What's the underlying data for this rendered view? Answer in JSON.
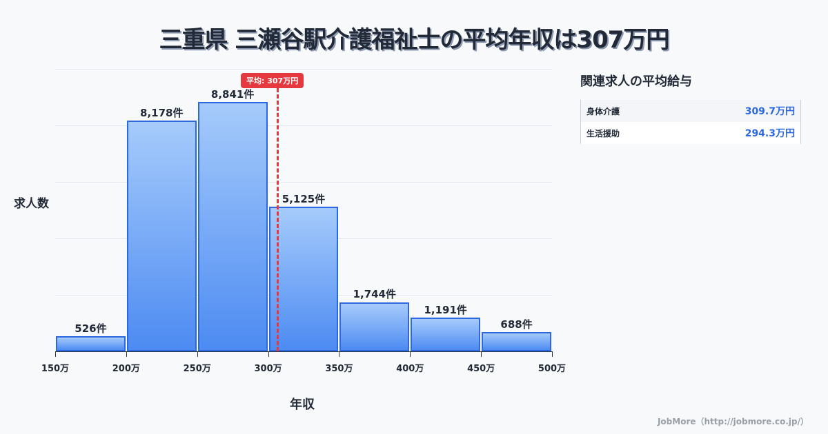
{
  "title": "三重県 三瀬谷駅介護福祉士の平均年収は307万円",
  "chart_data": {
    "type": "bar",
    "title": "三重県 三瀬谷駅介護福祉士の平均年収は307万円",
    "xlabel": "年収",
    "ylabel": "求人数",
    "x_ticks": [
      "150万",
      "200万",
      "250万",
      "300万",
      "350万",
      "400万",
      "450万",
      "500万"
    ],
    "categories": [
      "150-200万",
      "200-250万",
      "250-300万",
      "300-350万",
      "350-400万",
      "400-450万",
      "450-500万"
    ],
    "values": [
      526,
      8178,
      8841,
      5125,
      1744,
      1191,
      688
    ],
    "value_labels": [
      "526件",
      "8,178件",
      "8,841件",
      "5,125件",
      "1,744件",
      "1,191件",
      "688件"
    ],
    "ylim": [
      0,
      10000
    ],
    "grid": true,
    "annotations": [
      {
        "type": "vline",
        "x": 307,
        "label": "平均: 307万円",
        "color": "#e5393f"
      }
    ],
    "bar_color": "#4d8bf2",
    "bar_edge_color": "#2d68e0"
  },
  "side_panel": {
    "title": "関連求人の平均給与",
    "rows": [
      {
        "name": "身体介護",
        "value": "309.7万円"
      },
      {
        "name": "生活援助",
        "value": "294.3万円"
      }
    ]
  },
  "footer": "JobMore（http://jobmore.co.jp/）"
}
